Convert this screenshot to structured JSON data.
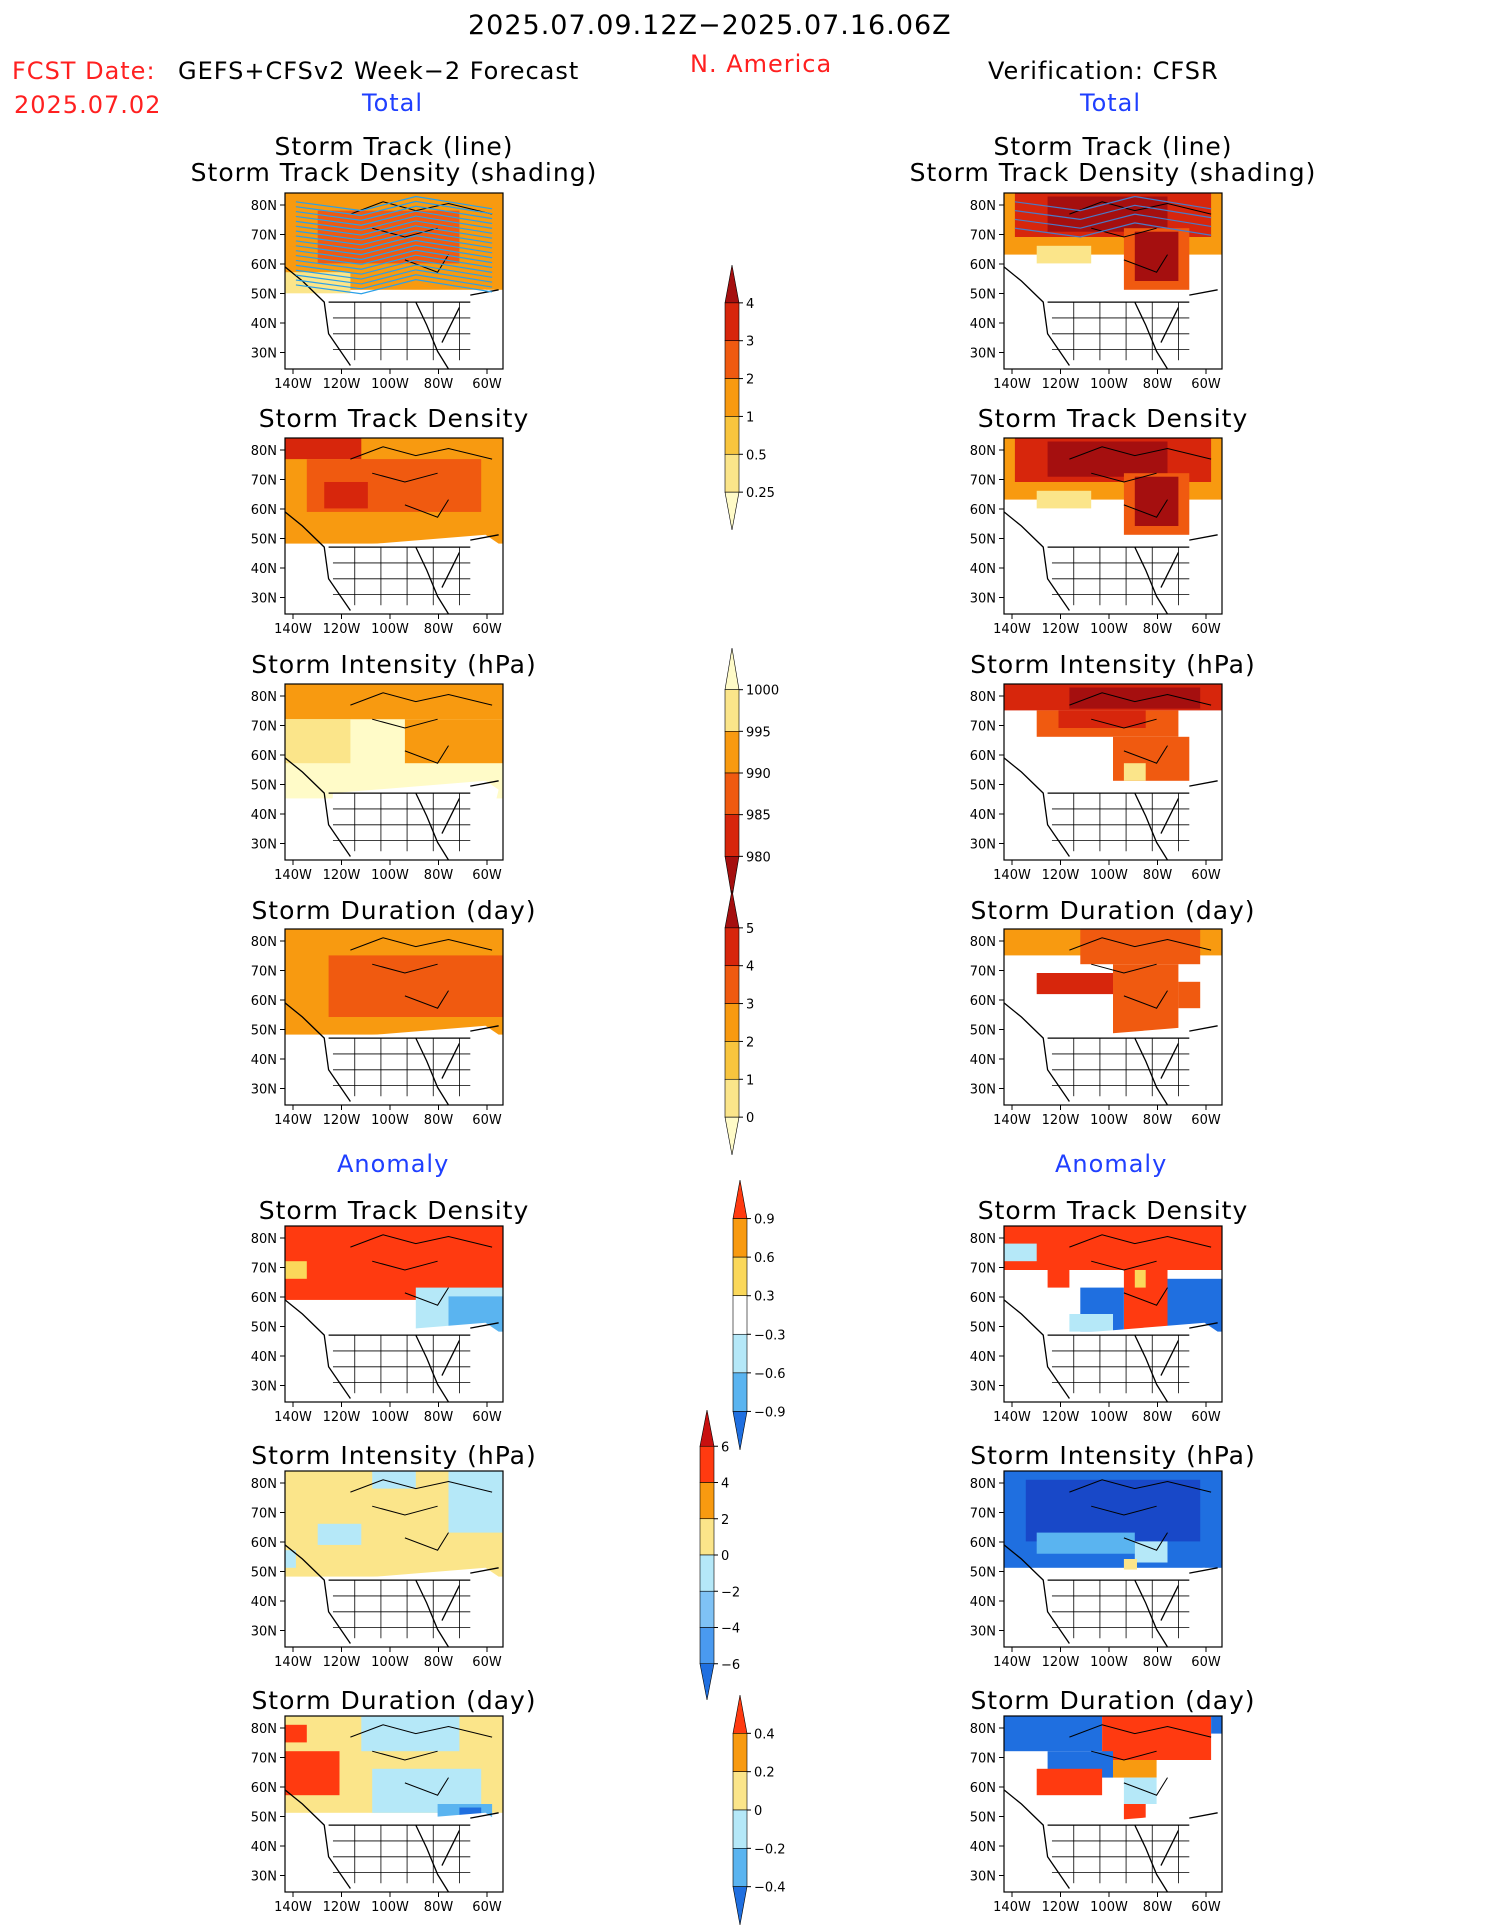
{
  "header": {
    "date_range": "2025.07.09.12Z−2025.07.16.06Z",
    "fcst_label": "FCST Date:",
    "fcst_date": "2025.07.02",
    "model": "GEFS+CFSv2 Week−2 Forecast",
    "region": "N. America",
    "verification": "Verification: CFSR"
  },
  "sections": {
    "total": "Total",
    "anomaly": "Anomaly"
  },
  "panel_titles": {
    "track_line": "Storm Track (line)",
    "track_shading": "Storm Track Density (shading)",
    "density": "Storm Track Density",
    "intensity": "Storm Intensity (hPa)",
    "duration": "Storm Duration (day)"
  },
  "axes": {
    "lat_ticks": [
      "80N",
      "70N",
      "60N",
      "50N",
      "40N",
      "30N"
    ],
    "lon_ticks": [
      "140W",
      "120W",
      "100W",
      "80W",
      "60W"
    ]
  },
  "colorbars": [
    {
      "id": "density_total",
      "labels": [
        "4",
        "3",
        "2",
        "1",
        "0.5",
        "0.25"
      ],
      "colors": [
        "#a50f0f",
        "#d7260c",
        "#f05a10",
        "#f89a10",
        "#f8c53e",
        "#fbe58a",
        "#fffbc8"
      ]
    },
    {
      "id": "intensity_total",
      "labels": [
        "1000",
        "995",
        "990",
        "985",
        "980"
      ],
      "colors": [
        "#fffbc8",
        "#fbe58a",
        "#f89a10",
        "#f05a10",
        "#d7260c",
        "#a50f0f"
      ]
    },
    {
      "id": "duration_total",
      "labels": [
        "5",
        "4",
        "3",
        "2",
        "1",
        "0"
      ],
      "colors": [
        "#a50f0f",
        "#d7260c",
        "#f05a10",
        "#f89a10",
        "#f8c53e",
        "#fbe58a",
        "#fffbc8"
      ]
    },
    {
      "id": "density_anom",
      "labels": [
        "0.9",
        "0.6",
        "0.3",
        "−0.3",
        "−0.6",
        "−0.9"
      ],
      "colors": [
        "#ff3a10",
        "#f89a10",
        "#fbd85a",
        "#ffffff",
        "#b5e8f8",
        "#5ab4f0",
        "#1f6fe0"
      ]
    },
    {
      "id": "intensity_anom",
      "labels": [
        "6",
        "4",
        "2",
        "0",
        "−2",
        "−4",
        "−6"
      ],
      "colors": [
        "#c81010",
        "#ff3a10",
        "#f89a10",
        "#fbe58a",
        "#b5e8f8",
        "#7fc2f5",
        "#4a9af0",
        "#1f6fe0"
      ]
    },
    {
      "id": "duration_anom",
      "labels": [
        "0.4",
        "0.2",
        "0",
        "−0.2",
        "−0.4"
      ],
      "colors": [
        "#ff3a10",
        "#f89a10",
        "#fbe58a",
        "#b5e8f8",
        "#5ab4f0",
        "#1f6fe0"
      ]
    }
  ],
  "colors": {
    "land_lines": "#000000",
    "track_line_fcst": "#2aa0e8",
    "track_line_obs": "#4a7ac8"
  }
}
